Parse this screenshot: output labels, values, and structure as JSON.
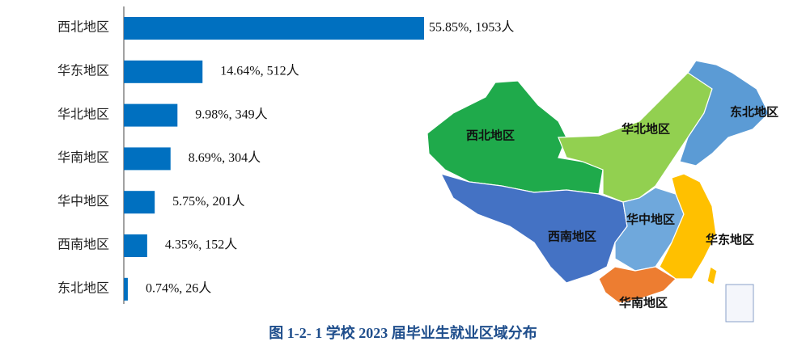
{
  "chart_data": {
    "type": "bar",
    "orientation": "horizontal",
    "title": "图 1-2- 1   学校 2023 届毕业生就业区域分布",
    "categories": [
      "西北地区",
      "华东地区",
      "华北地区",
      "华南地区",
      "华中地区",
      "西南地区",
      "东北地区"
    ],
    "values": [
      1953,
      512,
      349,
      304,
      201,
      152,
      26
    ],
    "value_labels": [
      "55.85%, 1953人",
      "14.64%, 512人",
      "9.98%, 349人",
      "8.69%, 304人",
      "5.75%, 201人",
      "4.35%, 152人",
      "0.74%, 26人"
    ],
    "color": "#0070c0"
  },
  "map": {
    "labels": [
      "西北地区",
      "华北地区",
      "东北地区",
      "华中地区",
      "西南地区",
      "华东地区",
      "华南地区"
    ]
  }
}
